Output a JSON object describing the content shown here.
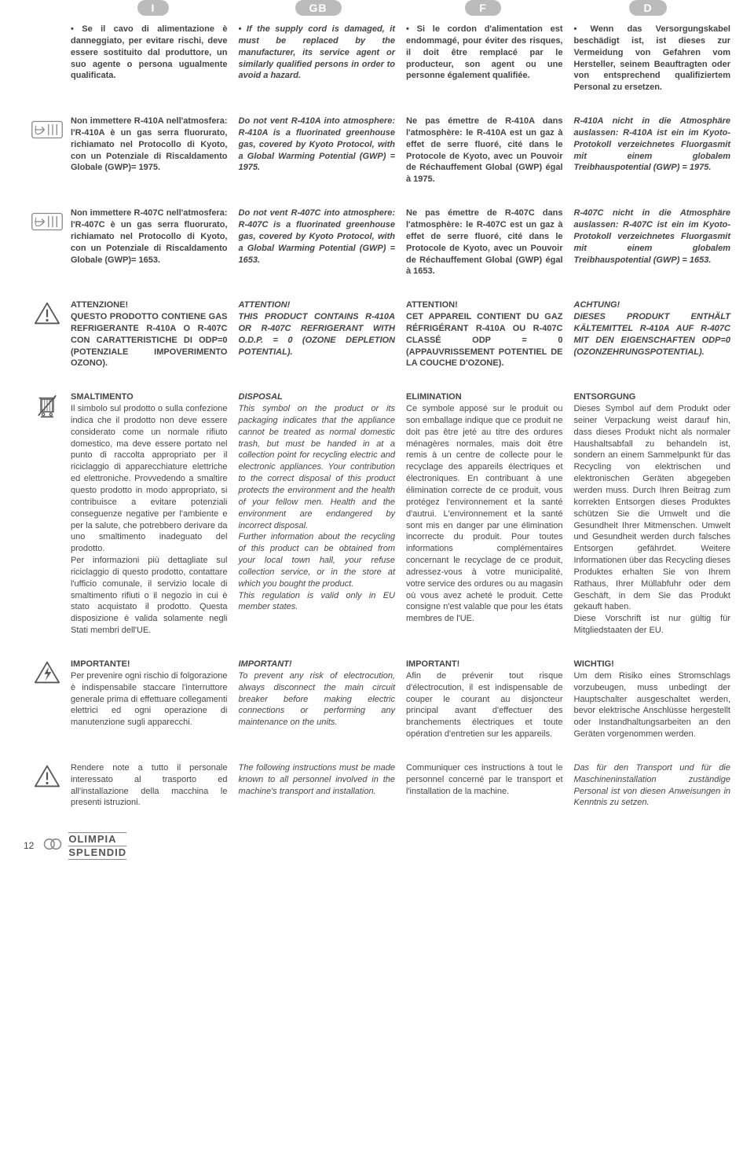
{
  "languages": [
    "I",
    "GB",
    "F",
    "D"
  ],
  "page_number": "12",
  "brand": {
    "line1": "OLIMPIA",
    "line2": "SPLENDID"
  },
  "rows": [
    {
      "icon": "none",
      "style_per_col": [
        "bold",
        "bold italic",
        "bold",
        "bold"
      ],
      "cells": [
        "• Se il cavo di alimentazione è danneggiato, per evitare rischi, deve essere sostituito dal produttore, un suo agente o persona ugualmente qualificata.",
        "• If the supply cord is damaged, it must be replaced by the manufacturer, its service agent or similarly qualified persons in order to avoid a hazard.",
        "• Si le cordon d'alimentation est endommagé, pour éviter des risques, il doit être remplacé par le producteur, son agent ou une personne également qualifiée.",
        "• Wenn das Versorgungskabel beschädigt ist, ist dieses zur Vermeidung von Gefahren vom Hersteller, seinem Beauftragten oder von entsprechend qualifiziertem Personal zu ersetzen."
      ]
    },
    {
      "icon": "pointer",
      "style_per_col": [
        "bold",
        "bold italic",
        "bold",
        "bold italic"
      ],
      "cells": [
        "Non immettere R-410A nell'atmosfera: l'R-410A è un gas serra fluorurato, richiamato nel Protocollo di Kyoto, con un Potenziale di Riscaldamento Globale (GWP)= 1975.",
        "Do not vent R-410A into atmosphere: R-410A is a fluorinated greenhouse gas, covered by Kyoto Protocol, with a Global Warming Potential (GWP) = 1975.",
        "Ne pas émettre de R-410A dans l'atmosphère: le R-410A est un gaz à effet de serre fluoré, cité dans le Protocole de Kyoto, avec un Pouvoir de Réchauffement Global (GWP) égal à 1975.",
        "R-410A nicht in die Atmosphäre auslassen: R-410A ist ein im Kyoto-Protokoll verzeichnetes Fluorgasmit mit einem globalem Treibhauspotential (GWP) = 1975."
      ]
    },
    {
      "icon": "pointer",
      "style_per_col": [
        "bold",
        "bold italic",
        "bold",
        "bold italic"
      ],
      "cells": [
        "Non immettere R-407C nell'atmosfera: l'R-407C è un gas serra fluorurato, richiamato nel Protocollo di Kyoto, con un Potenziale di Riscaldamento Globale (GWP)= 1653.",
        "Do not vent R-407C into atmosphere: R-407C is a fluorinated greenhouse gas, covered by Kyoto Protocol, with a Global Warming Potential (GWP) = 1653.",
        "Ne pas émettre de R-407C dans l'atmosphère: le R-407C est un gaz à effet de serre fluoré, cité dans le Protocole de Kyoto, avec un Pouvoir de Réchauffement Global (GWP) égal à 1653.",
        "R-407C nicht in die Atmosphäre auslassen: R-407C ist ein im Kyoto-Protokoll verzeichnetes Fluorgasmit mit einem globalem Treibhauspotential (GWP) = 1653."
      ]
    },
    {
      "icon": "warning",
      "style_per_col": [
        "bold",
        "bold italic",
        "bold",
        "bold italic"
      ],
      "cells": [
        "ATTENZIONE!\nQUESTO PRODOTTO CONTIENE GAS REFRIGERANTE R-410A O R-407C CON CARATTERISTICHE DI ODP=0 (POTENZIALE IMPOVERIMENTO OZONO).",
        "ATTENTION!\nTHIS PRODUCT CONTAINS R-410A OR R-407C REFRIGERANT WITH O.D.P. = 0 (OZONE DEPLETION POTENTIAL).",
        "ATTENTION!\nCET APPAREIL CONTIENT DU GAZ RÉFRIGÉRANT R-410A OU R-407C CLASSÉ ODP = 0 (APPAUVRISSEMENT POTENTIEL DE LA COUCHE D'OZONE).",
        "ACHTUNG!\nDIESES PRODUKT ENTHÄLT KÄLTEMITTEL R-410A AUF R-407C MIT DEN EIGENSCHAFTEN ODP=0 (OZONZEHRUNGSPOTENTIAL)."
      ]
    },
    {
      "icon": "weee",
      "style_per_col": [
        "",
        "italic",
        "",
        ""
      ],
      "titles": [
        "SMALTIMENTO",
        "DISPOSAL",
        "ELIMINATION",
        "ENTSORGUNG"
      ],
      "cells": [
        "Il simbolo sul prodotto o sulla confezione indica che il prodotto non deve essere considerato come un normale rifiuto domestico, ma deve essere portato nel punto di raccolta appropriato per il riciclaggio di apparecchiature elettriche ed elettroniche. Provvedendo a smaltire questo prodotto in modo appropriato, si contribuisce a evitare potenziali conseguenze negative per l'ambiente e per la salute, che potrebbero derivare da uno smaltimento inadeguato del prodotto.\nPer informazioni più dettagliate sul riciclaggio di questo prodotto, contattare l'ufficio comunale, il servizio locale di smaltimento rifiuti o il negozio in cui è stato acquistato il prodotto. Questa disposizione è valida solamente negli Stati membri dell'UE.",
        "This symbol on the product or its packaging indicates that the appliance cannot be treated as normal domestic trash, but must be handed in at a collection point for recycling electric and electronic appliances. Your contribution to the correct disposal of this product protects the environment and the health of your fellow men. Health and the environment are endangered by incorrect disposal.\nFurther information about the recycling of this product can be obtained from your local town hall, your refuse collection service, or in the store at which you bought the product.\nThis regulation is valid only in EU member states.",
        "Ce symbole apposé sur le produit ou son emballage indique que ce produit ne doit pas être jeté au titre des ordures ménagères normales, mais doit être remis à un centre de collecte pour le recyclage des appareils électriques et électroniques. En contribuant à une élimination correcte de ce produit, vous protégez l'environnement et la santé d'autrui. L'environnement et la santé sont mis en danger par une élimination incorrecte du produit. Pour toutes informations complémentaires concernant le recyclage de ce produit, adressez-vous à votre municipalité, votre service des ordures ou au magasin où vous avez acheté le produit. Cette consigne n'est valable que pour les états membres de l'UE.",
        "Dieses Symbol auf dem Produkt oder seiner Verpackung weist darauf hin, dass dieses Produkt nicht als normaler Haushaltsabfall zu behandeln ist, sondern an einem Sammelpunkt für das Recycling von elektrischen und elektronischen Geräten abgegeben werden muss. Durch Ihren Beitrag zum korrekten Entsorgen dieses Produktes schützen Sie die Umwelt und die Gesundheit Ihrer Mitmenschen. Umwelt und Gesundheit werden durch falsches Entsorgen gefährdet. Weitere Informationen über das Recycling dieses Produktes erhalten Sie von Ihrem Rathaus, Ihrer Müllabfuhr oder dem Geschäft, in dem Sie das Produkt gekauft haben.\nDiese Vorschrift ist nur gültig für Mitgliedstaaten der EU."
      ]
    },
    {
      "icon": "electric",
      "style_per_col": [
        "",
        "italic",
        "",
        ""
      ],
      "titles": [
        "IMPORTANTE!",
        "IMPORTANT!",
        "IMPORTANT!",
        "WICHTIG!"
      ],
      "cells": [
        "Per prevenire ogni rischio di folgorazione è indispensabile staccare l'interruttore generale prima di effettuare collegamenti elettrici ed ogni operazione di manutenzione sugli apparecchi.",
        "To prevent any risk of electrocution, always disconnect the main circuit breaker before making electric connections or performing any maintenance on the units.",
        "Afin de prévenir tout risque d'électrocution, il est indispensable de couper le courant au disjoncteur principal avant d'effectuer des branchements électriques et toute opération d'entretien sur les appareils.",
        "Um dem Risiko eines Stromschlags vorzubeugen, muss unbedingt der Hauptschalter ausgeschaltet werden, bevor elektrische Anschlüsse hergestellt oder Instandhaltungsarbeiten an den Geräten vorgenommen werden."
      ]
    },
    {
      "icon": "warning",
      "style_per_col": [
        "",
        "italic",
        "",
        "italic"
      ],
      "cells": [
        "Rendere note a tutto il personale interessato al trasporto ed all'installazione della macchina le presenti istruzioni.",
        "The following instructions must be made known to all personnel involved in the machine's transport and installation.",
        "Communiquer ces instructions à tout le personnel concerné par le transport et l'installation de la machine.",
        "Das für den Transport und für die Maschineninstallation zuständige Personal ist von diesen Anweisungen in Kenntnis zu setzen."
      ]
    }
  ]
}
